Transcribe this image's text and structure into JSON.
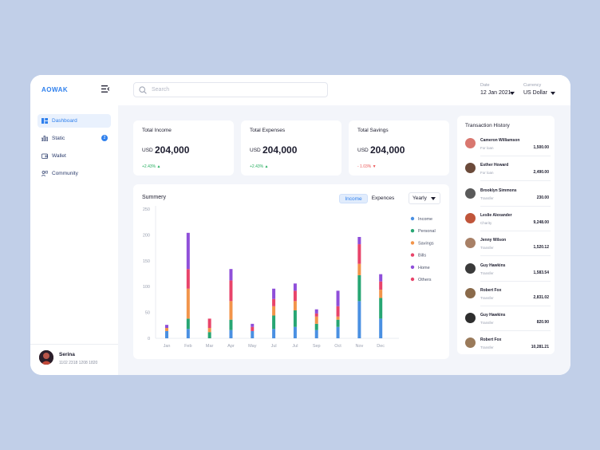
{
  "app": {
    "logo": "AOWAK"
  },
  "header": {
    "search_placeholder": "Search",
    "date_label": "Date",
    "date_value": "12 Jan 2021",
    "currency_label": "Currency",
    "currency_value": "US Dollar"
  },
  "sidebar": {
    "items": [
      {
        "label": "Dashboard",
        "icon": "dashboard-icon",
        "active": true
      },
      {
        "label": "Static",
        "icon": "chart-icon",
        "badge": "2"
      },
      {
        "label": "Wallet",
        "icon": "wallet-icon"
      },
      {
        "label": "Community",
        "icon": "community-icon"
      }
    ],
    "user": {
      "name": "Serina",
      "card": "1102 2318 1208 1820"
    }
  },
  "stats": [
    {
      "title": "Total Income",
      "currency": "USD",
      "value": "204,000",
      "change": "+2.43%",
      "trend": "up"
    },
    {
      "title": "Total Expenses",
      "currency": "USD",
      "value": "204,000",
      "change": "+2.43%",
      "trend": "up"
    },
    {
      "title": "Total Savings",
      "currency": "USD",
      "value": "204,000",
      "change": "- 1.03%",
      "trend": "down"
    }
  ],
  "summary": {
    "title": "Summery",
    "toggle_income": "Income",
    "toggle_expenses": "Expences",
    "period": "Yearly"
  },
  "chart_data": {
    "type": "bar",
    "stacked": true,
    "categories": [
      "Jan",
      "Feb",
      "Mar",
      "Apr",
      "May",
      "Jul",
      "Jul",
      "Sep",
      "Oct",
      "Nov",
      "Dec"
    ],
    "ylim": [
      0,
      250
    ],
    "yticks": [
      0,
      50,
      100,
      150,
      200,
      250
    ],
    "series": [
      {
        "name": "Income",
        "color": "#4a90e2",
        "values": [
          14,
          18,
          0,
          16,
          14,
          18,
          22,
          16,
          22,
          72,
          38
        ]
      },
      {
        "name": "Personal",
        "color": "#27a673",
        "values": [
          0,
          20,
          12,
          20,
          0,
          26,
          32,
          12,
          14,
          50,
          40
        ]
      },
      {
        "name": "Savings",
        "color": "#f2944a",
        "values": [
          6,
          58,
          8,
          36,
          0,
          18,
          18,
          14,
          6,
          22,
          16
        ]
      },
      {
        "name": "Bills",
        "color": "#e8446a",
        "values": [
          0,
          38,
          18,
          40,
          8,
          14,
          20,
          6,
          20,
          38,
          16
        ]
      },
      {
        "name": "Home",
        "color": "#8f4fd9",
        "values": [
          6,
          70,
          0,
          22,
          6,
          20,
          14,
          8,
          30,
          14,
          14
        ]
      },
      {
        "name": "Others",
        "color": "#e8446a",
        "values": [
          0,
          0,
          0,
          0,
          0,
          0,
          0,
          0,
          0,
          0,
          0
        ]
      }
    ],
    "legend": "right",
    "grid": false
  },
  "transactions": {
    "title": "Transaction History",
    "items": [
      {
        "name": "Cameron Williamson",
        "type": "For loan",
        "amount": "1,500.00",
        "avatar_color": "#d9776f"
      },
      {
        "name": "Esther Howard",
        "type": "For loan",
        "amount": "2,490.00",
        "avatar_color": "#6b4a3a"
      },
      {
        "name": "Brooklyn Simmons",
        "type": "Transfer",
        "amount": "230.00",
        "avatar_color": "#5a5a5a"
      },
      {
        "name": "Leslie Alexander",
        "type": "Charity",
        "amount": "9,248.00",
        "avatar_color": "#c0553a"
      },
      {
        "name": "Jenny Wilson",
        "type": "Transfer",
        "amount": "1,520.12",
        "avatar_color": "#a88066"
      },
      {
        "name": "Guy Hawkins",
        "type": "Transfer",
        "amount": "1,583.54",
        "avatar_color": "#3a3a3a"
      },
      {
        "name": "Robert Fox",
        "type": "Transfer",
        "amount": "2,831.02",
        "avatar_color": "#8a6a4a"
      },
      {
        "name": "Guy Hawkins",
        "type": "Transfer",
        "amount": "820.90",
        "avatar_color": "#2e2e2e"
      },
      {
        "name": "Robert Fox",
        "type": "Transfer",
        "amount": "10,281.21",
        "avatar_color": "#9a7a5a"
      }
    ]
  }
}
